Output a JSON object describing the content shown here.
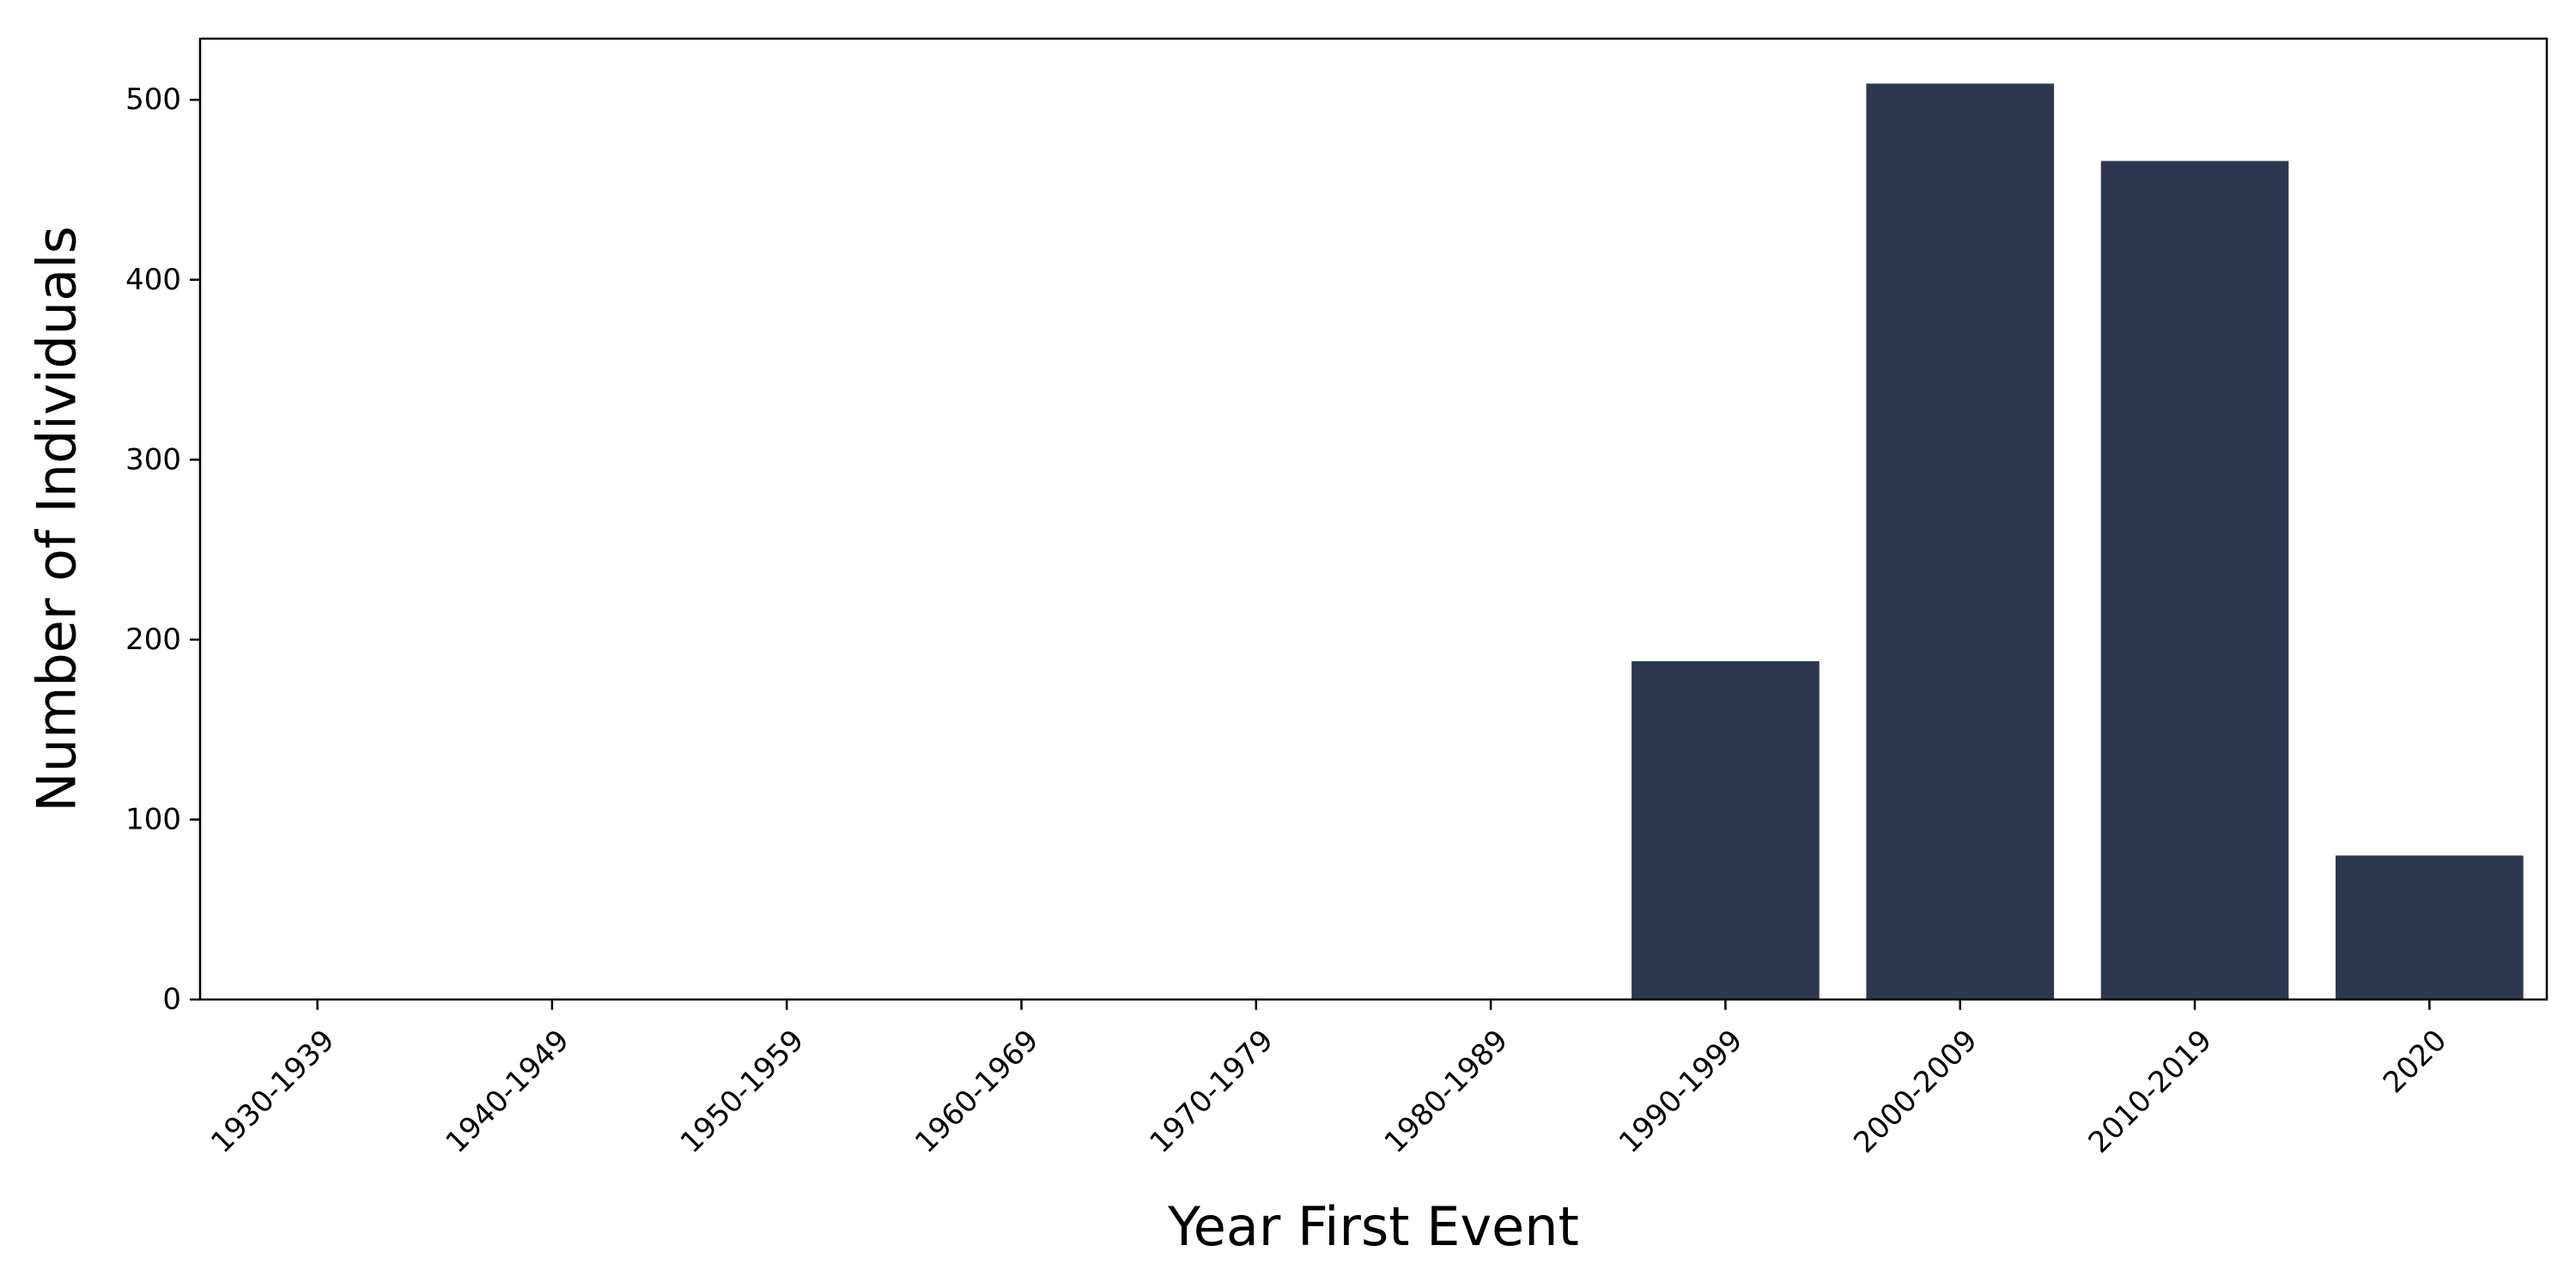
{
  "chart_data": {
    "type": "bar",
    "categories": [
      "1930-1939",
      "1940-1949",
      "1950-1959",
      "1960-1969",
      "1970-1979",
      "1980-1989",
      "1990-1999",
      "2000-2009",
      "2010-2019",
      "2020"
    ],
    "values": [
      0,
      0,
      0,
      0,
      0,
      0,
      188,
      509,
      466,
      80
    ],
    "title": "",
    "xlabel": "Year First Event",
    "ylabel": "Number of Individuals",
    "ylim": [
      0,
      534
    ],
    "yticks": [
      0,
      100,
      200,
      300,
      400,
      500
    ],
    "grid": false,
    "legend": "none",
    "bar_color": "#2d3850"
  }
}
